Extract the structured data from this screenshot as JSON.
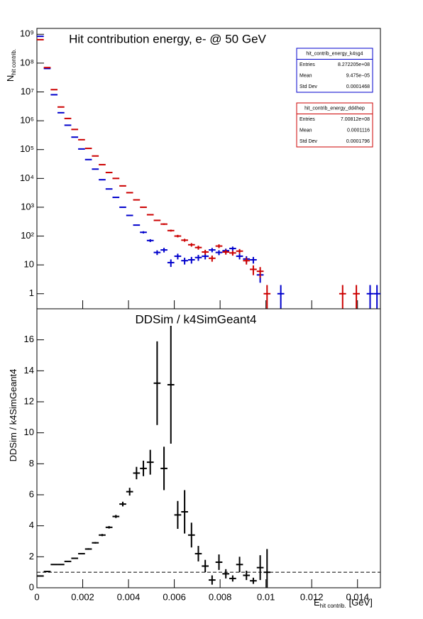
{
  "chart_data": [
    {
      "type": "histogram",
      "title": "Hit contribution energy,  e- @ 50 GeV",
      "ylabel": "N",
      "ylabel_sub": "hit contrib.",
      "log_y": true,
      "bins": [
        0,
        0.0003,
        0.0006,
        0.0009,
        0.0012,
        0.0015,
        0.0018,
        0.0021,
        0.0024,
        0.0027,
        0.003,
        0.0033,
        0.0036,
        0.0039,
        0.0042,
        0.0045,
        0.0048,
        0.0051,
        0.0054,
        0.0057,
        0.006,
        0.0063,
        0.0066,
        0.0069,
        0.0072,
        0.0075,
        0.0078,
        0.0081,
        0.0084,
        0.0087,
        0.009,
        0.0093,
        0.0096,
        0.0099,
        0.0102,
        0.0105,
        0.0108,
        0.0111,
        0.0114,
        0.0117,
        0.012,
        0.0123,
        0.0126,
        0.0129,
        0.0132,
        0.0135,
        0.0138,
        0.0141,
        0.0144,
        0.0147,
        0.015
      ],
      "xlim": [
        0,
        0.015
      ],
      "ylim": [
        0.3,
        1600000000
      ],
      "yticks": [
        {
          "value": 1,
          "label": "1"
        },
        {
          "value": 10,
          "label": "10"
        },
        {
          "value": 100,
          "label": "10²"
        },
        {
          "value": 1000,
          "label": "10³"
        },
        {
          "value": 10000,
          "label": "10⁴"
        },
        {
          "value": 100000,
          "label": "10⁵"
        },
        {
          "value": 1000000,
          "label": "10⁶"
        },
        {
          "value": 10000000,
          "label": "10⁷"
        },
        {
          "value": 100000000,
          "label": "10⁸"
        },
        {
          "value": 1000000000,
          "label": "10⁹"
        }
      ],
      "series": [
        {
          "name": "hit_contrib_energy_k4sg4",
          "color": "#0000cc",
          "values": [
            850000000,
            65000000,
            8000000,
            1900000,
            700000,
            270000,
            105000,
            45000,
            21000,
            9000,
            4300,
            2200,
            1000,
            520,
            240,
            135,
            70,
            27,
            33,
            12,
            20,
            14,
            15,
            18,
            20,
            33,
            27,
            31,
            37,
            20,
            16,
            15,
            4.5,
            null,
            null,
            1,
            null,
            null,
            null,
            null,
            null,
            null,
            null,
            null,
            null,
            null,
            null,
            null,
            1,
            1
          ],
          "errors": [
            null,
            null,
            null,
            null,
            null,
            null,
            null,
            null,
            null,
            null,
            null,
            null,
            null,
            null,
            null,
            12,
            8,
            5,
            6,
            3.5,
            4.5,
            3.7,
            3.9,
            4.2,
            4.5,
            5.7,
            5.2,
            5.6,
            6.1,
            4.5,
            4,
            3.9,
            2.1,
            null,
            null,
            1,
            null,
            null,
            null,
            null,
            null,
            null,
            null,
            null,
            null,
            null,
            null,
            null,
            1,
            1
          ],
          "stats": [
            [
              "Entries",
              "8.272205e+08"
            ],
            [
              "Mean",
              "9.475e−05"
            ],
            [
              "Std Dev",
              "0.0001468"
            ]
          ]
        },
        {
          "name": "hit_contrib_energy_dd4hep",
          "color": "#cc0000",
          "values": [
            650000000,
            70000000,
            12000000,
            3000000,
            1200000,
            500000,
            220000,
            110000,
            60000,
            30000,
            16000,
            10000,
            5500,
            3200,
            1800,
            1000,
            550,
            350,
            260,
            155,
            100,
            72,
            50,
            40,
            28,
            17,
            45,
            28,
            26,
            30,
            14,
            7,
            6,
            1,
            null,
            null,
            null,
            null,
            null,
            null,
            null,
            null,
            null,
            null,
            1,
            null,
            1,
            null,
            null,
            null
          ],
          "errors": [
            null,
            null,
            null,
            null,
            null,
            null,
            null,
            null,
            null,
            null,
            null,
            null,
            null,
            null,
            null,
            null,
            null,
            null,
            16,
            12,
            10,
            8.5,
            7,
            6.3,
            5.3,
            4.1,
            6.7,
            5.3,
            5.1,
            5.5,
            3.7,
            2.6,
            2.4,
            1,
            null,
            null,
            null,
            null,
            null,
            null,
            null,
            null,
            null,
            null,
            1,
            null,
            1,
            null,
            null,
            null
          ],
          "stats": [
            [
              "Entries",
              "7.00812e+08"
            ],
            [
              "Mean",
              "0.0001116"
            ],
            [
              "Std Dev",
              "0.0001796"
            ]
          ]
        }
      ]
    },
    {
      "type": "histogram",
      "title": "DDSim / k4SimGeant4",
      "ylabel": "DDSim / k4SimGeant4",
      "xlabel": "E",
      "xlabel_sub": "hit contrib.",
      "xlabel_unit": "[GeV]",
      "bins": [
        0,
        0.0003,
        0.0006,
        0.0009,
        0.0012,
        0.0015,
        0.0018,
        0.0021,
        0.0024,
        0.0027,
        0.003,
        0.0033,
        0.0036,
        0.0039,
        0.0042,
        0.0045,
        0.0048,
        0.0051,
        0.0054,
        0.0057,
        0.006,
        0.0063,
        0.0066,
        0.0069,
        0.0072,
        0.0075,
        0.0078,
        0.0081,
        0.0084,
        0.0087,
        0.009,
        0.0093,
        0.0096,
        0.0099,
        0.0102,
        0.0105,
        0.0108,
        0.0111,
        0.0114,
        0.0117,
        0.012,
        0.0123,
        0.0126,
        0.0129,
        0.0132,
        0.0135,
        0.0138,
        0.0141,
        0.0144,
        0.0147,
        0.015
      ],
      "xlim": [
        0,
        0.015
      ],
      "xticks": [
        0,
        0.002,
        0.004,
        0.006,
        0.008,
        0.01,
        0.012,
        0.014
      ],
      "ylim": [
        0,
        18
      ],
      "yticks": [
        0,
        2,
        4,
        6,
        8,
        10,
        12,
        14,
        16
      ],
      "reference_line": 1,
      "series": [
        {
          "name": "DDSim / k4SimGeant4",
          "color": "#000000",
          "values": [
            0.76,
            1.05,
            1.5,
            1.5,
            1.7,
            1.9,
            2.2,
            2.5,
            2.9,
            3.4,
            3.9,
            4.6,
            5.4,
            6.2,
            7.4,
            7.7,
            8.1,
            13.2,
            7.7,
            13.1,
            4.7,
            4.9,
            3.4,
            2.2,
            1.4,
            0.5,
            1.65,
            0.9,
            0.6,
            1.5,
            0.8,
            0.45,
            1.3,
            1.0,
            null,
            null,
            null,
            null,
            null,
            null,
            null,
            null,
            null,
            null,
            null,
            null,
            null,
            null,
            null,
            null
          ],
          "errors": [
            null,
            null,
            null,
            null,
            null,
            null,
            null,
            0.05,
            0.05,
            0.07,
            0.08,
            0.1,
            0.15,
            0.25,
            0.4,
            0.5,
            0.8,
            2.7,
            1.4,
            3.8,
            0.9,
            1.4,
            0.8,
            0.5,
            0.4,
            0.3,
            0.5,
            0.3,
            0.2,
            0.5,
            0.3,
            0.2,
            0.8,
            1.5,
            null,
            null,
            null,
            null,
            null,
            null,
            null,
            null,
            null,
            null,
            null,
            null,
            null,
            null,
            null,
            null
          ]
        }
      ]
    }
  ]
}
